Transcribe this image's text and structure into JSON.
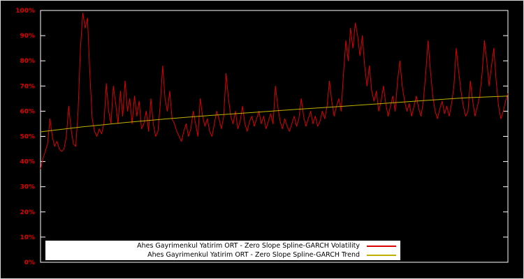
{
  "chart_data": {
    "type": "line",
    "title": "",
    "xlabel": "",
    "ylabel": "",
    "ylim": [
      0,
      100
    ],
    "y_ticks": [
      "0%",
      "10%",
      "20%",
      "30%",
      "40%",
      "50%",
      "60%",
      "70%",
      "80%",
      "90%",
      "100%"
    ],
    "x_tick_labels_visible": false,
    "grid": false,
    "legend_position": "bottom-center",
    "background_color": "#000000",
    "axis_color": "#ffffff",
    "tick_label_color": "#dd0000",
    "series": [
      {
        "name": "Ahes Gayrimenkul Yatirim ORT - Zero Slope Spline-GARCH Volatility",
        "color": "#dd0000",
        "values": [
          37,
          41,
          44,
          47,
          57,
          50,
          46,
          48,
          45,
          44,
          45,
          50,
          62,
          53,
          47,
          46,
          60,
          85,
          99,
          93,
          97,
          75,
          57,
          52,
          50,
          53,
          51,
          55,
          71,
          60,
          55,
          70,
          63,
          55,
          68,
          58,
          72,
          60,
          65,
          55,
          66,
          58,
          64,
          53,
          55,
          60,
          52,
          65,
          55,
          50,
          52,
          63,
          78,
          65,
          60,
          68,
          57,
          55,
          52,
          50,
          48,
          52,
          55,
          50,
          53,
          60,
          55,
          50,
          65,
          58,
          54,
          57,
          52,
          50,
          55,
          60,
          57,
          53,
          58,
          75,
          65,
          58,
          55,
          60,
          53,
          56,
          62,
          55,
          52,
          56,
          58,
          54,
          57,
          60,
          55,
          58,
          53,
          56,
          59,
          55,
          70,
          62,
          56,
          53,
          57,
          54,
          52,
          55,
          58,
          54,
          57,
          65,
          58,
          54,
          57,
          60,
          55,
          58,
          54,
          56,
          60,
          57,
          62,
          72,
          64,
          58,
          62,
          65,
          60,
          75,
          88,
          80,
          93,
          85,
          95,
          90,
          82,
          90,
          78,
          70,
          78,
          68,
          64,
          68,
          60,
          64,
          70,
          63,
          58,
          62,
          66,
          60,
          72,
          80,
          70,
          64,
          60,
          63,
          58,
          62,
          66,
          61,
          58,
          64,
          75,
          88,
          76,
          66,
          60,
          57,
          61,
          64,
          59,
          62,
          58,
          63,
          70,
          85,
          76,
          68,
          62,
          58,
          60,
          72,
          64,
          58,
          62,
          66,
          75,
          88,
          80,
          70,
          78,
          85,
          72,
          62,
          57,
          60,
          64,
          67
        ]
      },
      {
        "name": "Ahes Gayrimenkul Yatirim ORT - Zero Slope Spline-GARCH Trend",
        "color": "#c0b000",
        "values": [
          51.8,
          53.8,
          55.5,
          57.0,
          58.3,
          59.5,
          60.7,
          61.8,
          63.0,
          64.2,
          65.3,
          66.0
        ]
      }
    ]
  },
  "legend": {
    "volatility_label": "Ahes Gayrimenkul Yatirim ORT - Zero Slope Spline-GARCH Volatility",
    "trend_label": "Ahes Gayrimenkul Yatirim ORT - Zero Slope Spline-GARCH Trend"
  }
}
